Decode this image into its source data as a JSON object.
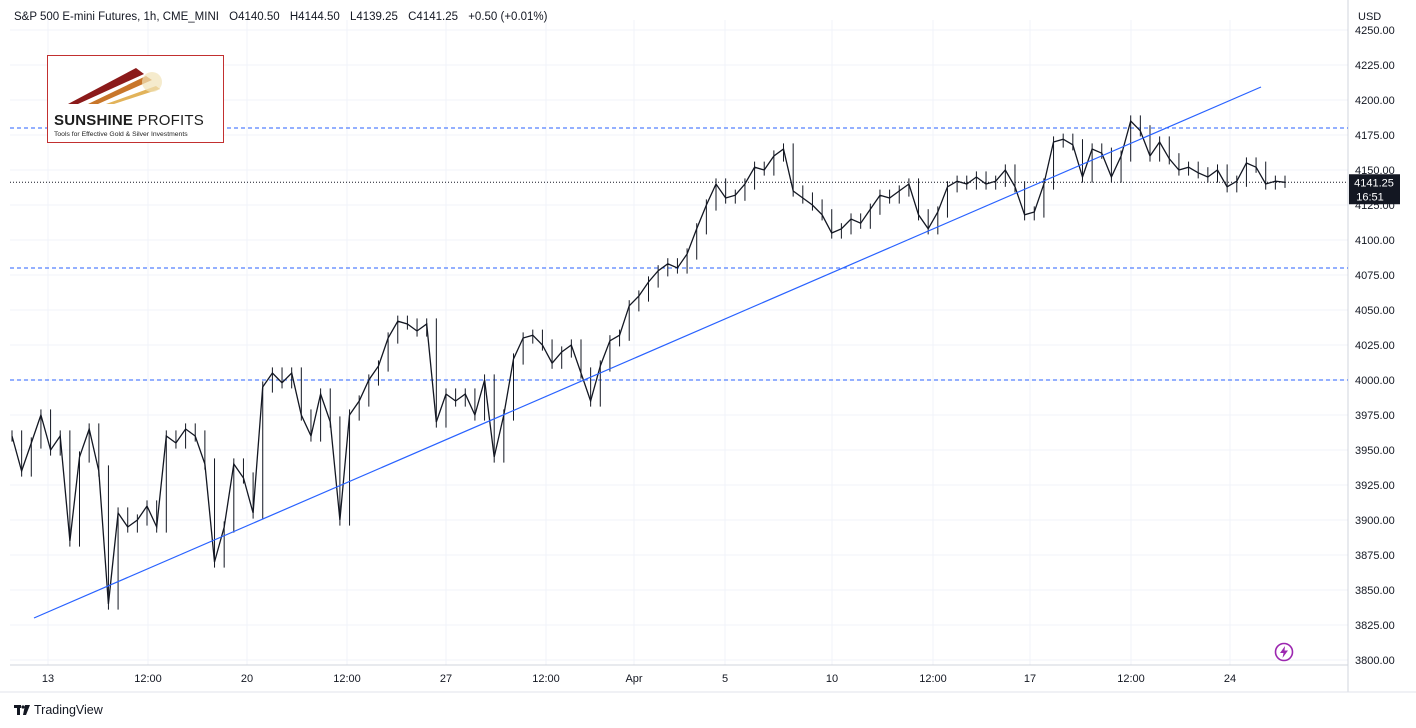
{
  "header": {
    "symbol": "S&P 500 E-mini Futures, 1h, CME_MINI",
    "open": "O4140.50",
    "high": "H4144.50",
    "low": "L4139.25",
    "close": "C4141.25",
    "change": "+0.50 (+0.01%)"
  },
  "currency": "USD",
  "logo": {
    "title_bold": "SUNSHINE",
    "title_light": " PROFITS",
    "tagline": "Tools for Effective Gold & Silver Investments"
  },
  "footer": {
    "brand": "TradingView"
  },
  "price_label": {
    "price": "4141.25",
    "countdown": "16:51"
  },
  "icons": {
    "brand": "tradingview-logo-icon",
    "alert": "lightning-bolt-icon"
  },
  "colors": {
    "candles": "#131722",
    "trendline": "#2962ff",
    "levels": "#2962ff",
    "logo_border": "#c23030",
    "alert": "#9c27b0"
  },
  "chart_data": {
    "type": "line",
    "xlabel": "",
    "ylabel": "",
    "ylim": [
      3795,
      4255
    ],
    "y_ticks": [
      3800,
      3825,
      3850,
      3875,
      3900,
      3925,
      3950,
      3975,
      4000,
      4025,
      4050,
      4075,
      4100,
      4125,
      4150,
      4175,
      4200,
      4225,
      4250
    ],
    "y_tick_labels": [
      "3800.00",
      "3825.00",
      "3850.00",
      "3875.00",
      "3900.00",
      "3925.00",
      "3950.00",
      "3975.00",
      "4000.00",
      "4025.00",
      "4050.00",
      "4075.00",
      "4100.00",
      "4125.00",
      "4150.00",
      "4175.00",
      "4200.00",
      "4225.00",
      "4250.00"
    ],
    "x_tick_labels": [
      "13",
      "12:00",
      "20",
      "12:00",
      "27",
      "12:00",
      "Apr",
      "5",
      "10",
      "12:00",
      "17",
      "12:00",
      "24"
    ],
    "series": [
      {
        "values": [
          3960,
          3935,
          3955,
          3975,
          3950,
          3960,
          3885,
          3945,
          3965,
          3935,
          3840,
          3905,
          3895,
          3900,
          3910,
          3895,
          3960,
          3955,
          3965,
          3960,
          3940,
          3870,
          3895,
          3940,
          3930,
          3905,
          3995,
          4005,
          3998,
          4005,
          3975,
          3960,
          3990,
          3970,
          3900,
          3975,
          3985,
          4000,
          4010,
          4030,
          4042,
          4040,
          4035,
          4040,
          3970,
          3990,
          3985,
          3990,
          3975,
          4000,
          3945,
          3975,
          4015,
          4030,
          4032,
          4025,
          4012,
          4020,
          4025,
          4005,
          3985,
          4010,
          4028,
          4032,
          4053,
          4060,
          4070,
          4078,
          4083,
          4080,
          4090,
          4108,
          4125,
          4140,
          4130,
          4132,
          4140,
          4152,
          4150,
          4160,
          4165,
          4135,
          4130,
          4125,
          4118,
          4105,
          4108,
          4115,
          4112,
          4122,
          4132,
          4130,
          4135,
          4140,
          4118,
          4108,
          4120,
          4138,
          4142,
          4140,
          4145,
          4140,
          4142,
          4150,
          4138,
          4118,
          4120,
          4140,
          4170,
          4172,
          4168,
          4145,
          4165,
          4162,
          4145,
          4160,
          4185,
          4178,
          4160,
          4170,
          4158,
          4150,
          4152,
          4148,
          4145,
          4150,
          4138,
          4142,
          4155,
          4152,
          4140,
          4142,
          4141.25
        ]
      }
    ],
    "levels": [
      4180,
      4080,
      4000
    ],
    "current_price": 4141.25
  }
}
